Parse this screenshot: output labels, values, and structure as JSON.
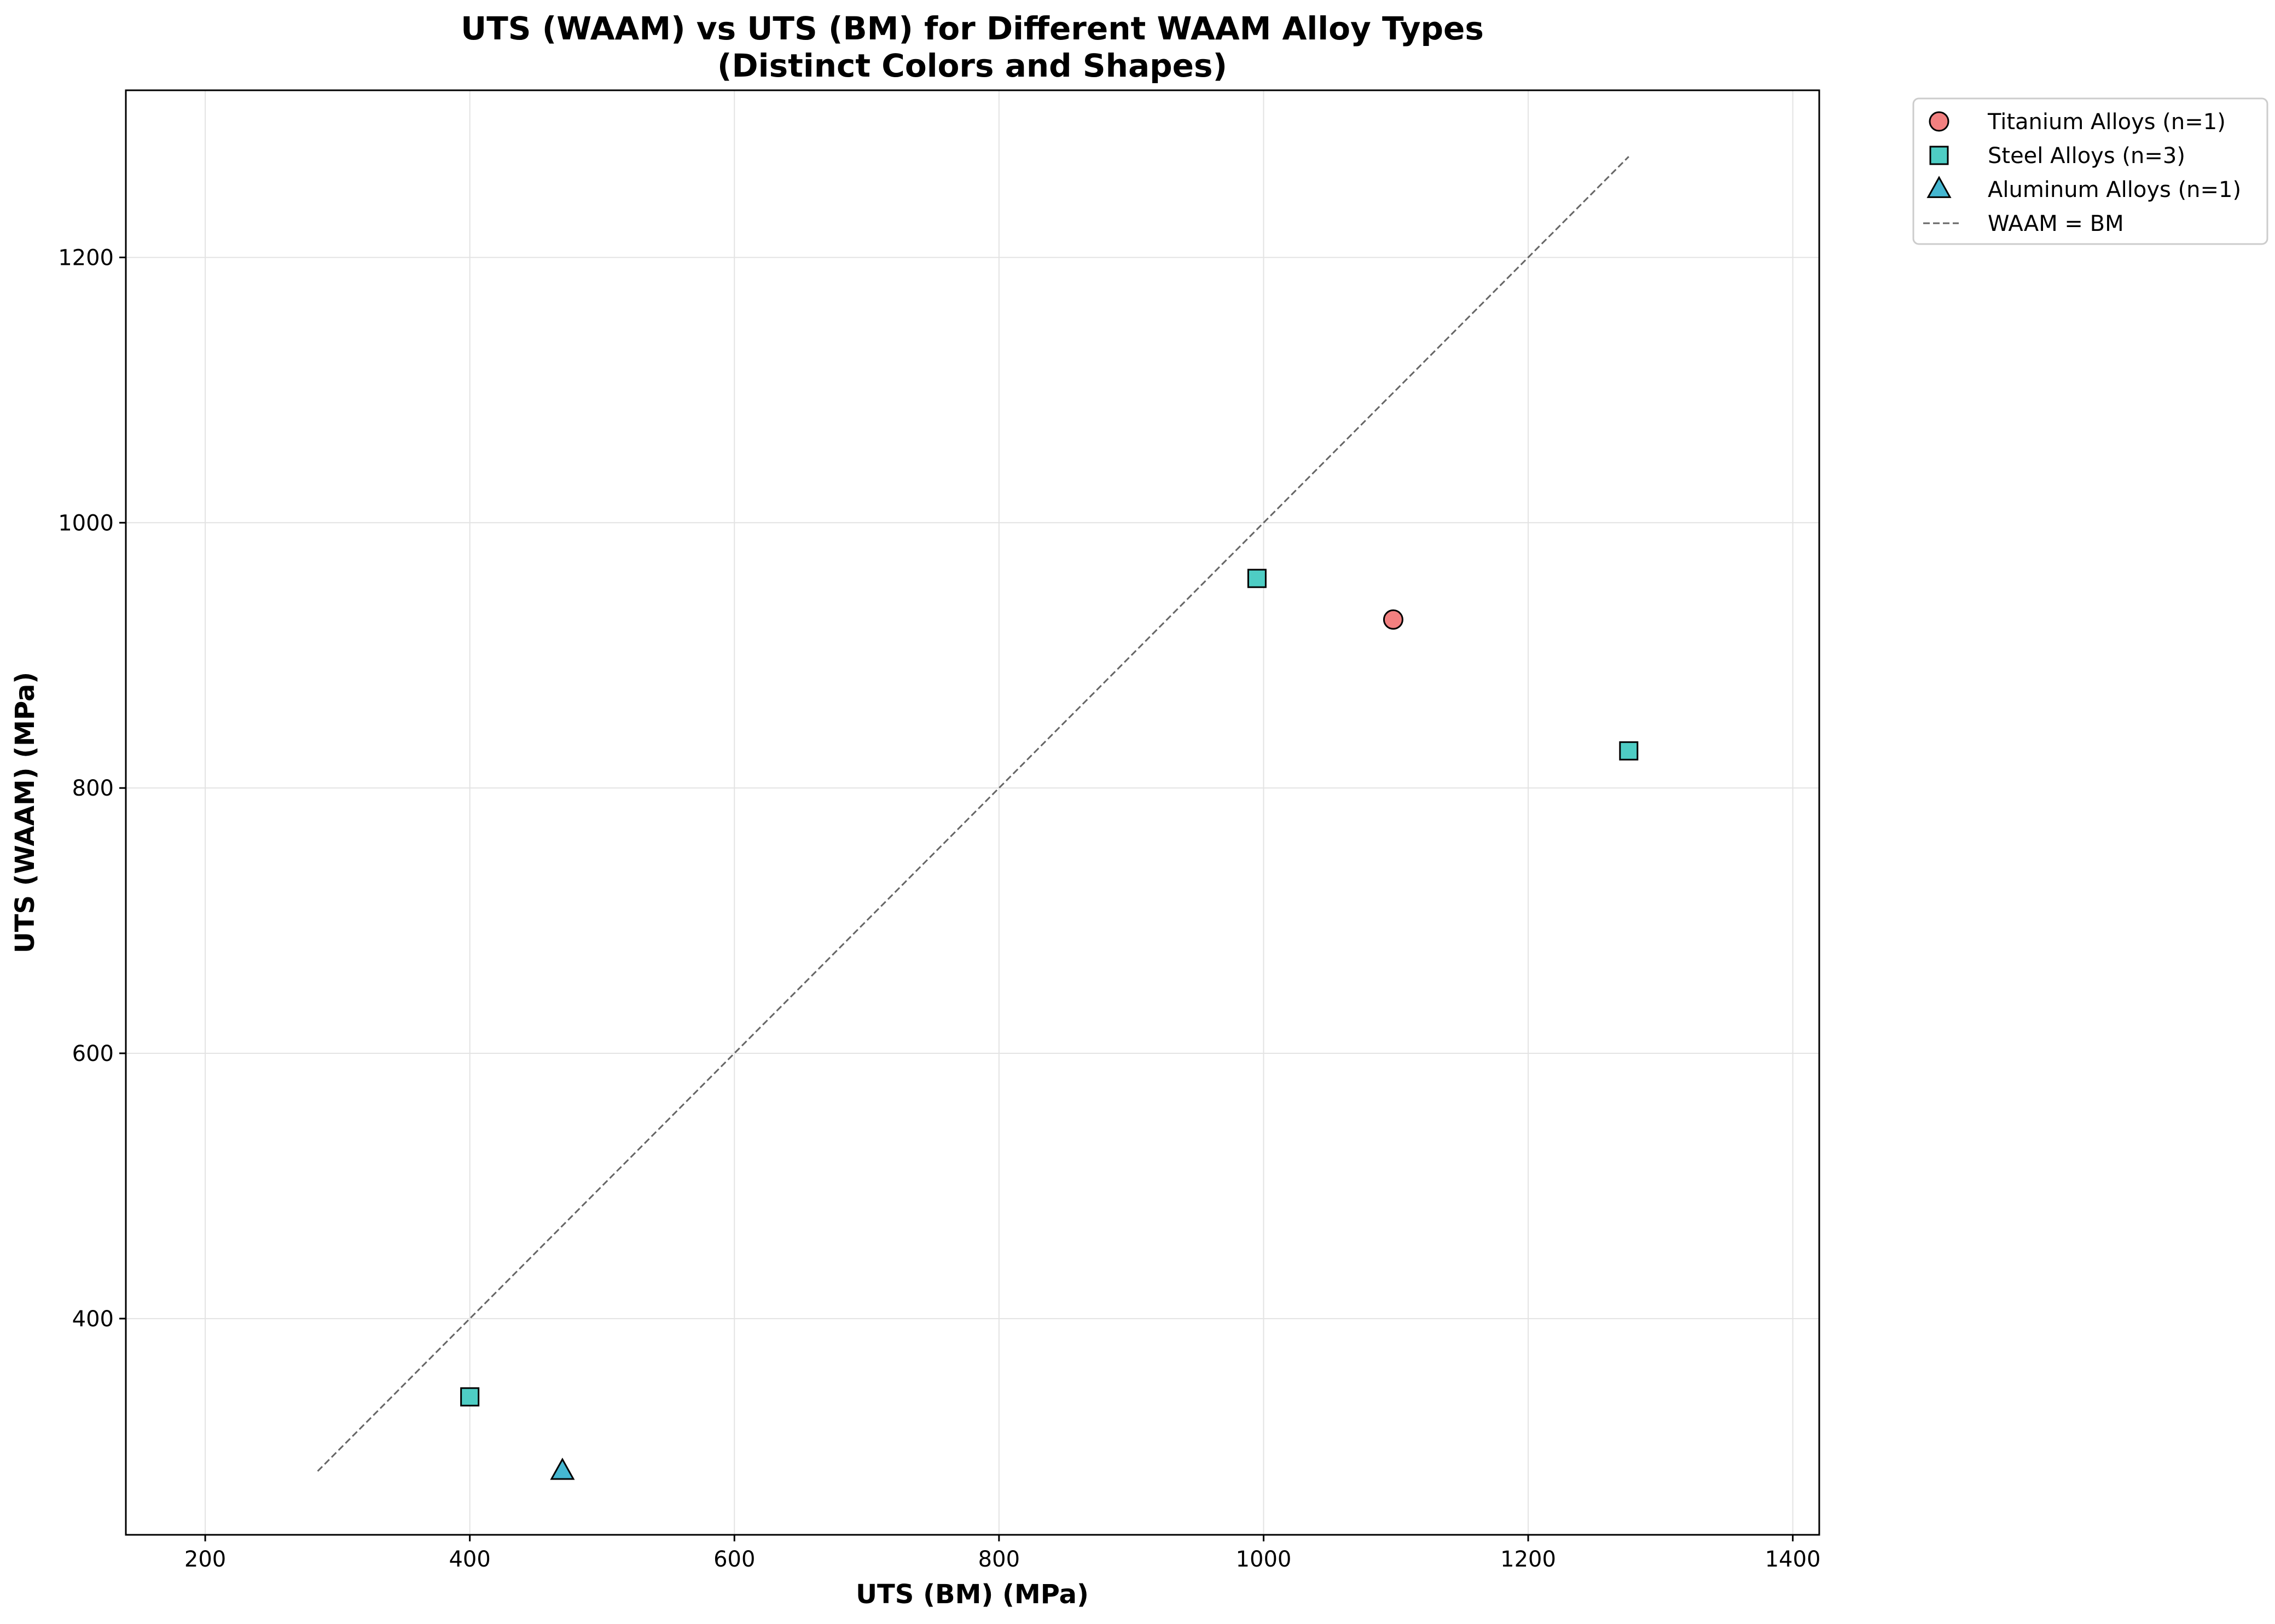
{
  "chart_data": {
    "type": "scatter",
    "title_line1": "UTS (WAAM) vs UTS (BM) for Different WAAM Alloy Types",
    "title_line2": "(Distinct Colors and Shapes)",
    "xlabel": "UTS (BM) (MPa)",
    "ylabel": "UTS (WAAM) (MPa)",
    "xlim": [
      140,
      1420
    ],
    "ylim": [
      237,
      1326
    ],
    "xticks": [
      200,
      400,
      600,
      800,
      1000,
      1200,
      1400
    ],
    "yticks": [
      400,
      600,
      800,
      1000,
      1200
    ],
    "grid": true,
    "legend_position": "outside top-right",
    "series": [
      {
        "name": "Titanium Alloys (n=1)",
        "marker": "circle",
        "color": "#f28080",
        "points": [
          {
            "x": 1098,
            "y": 927
          }
        ]
      },
      {
        "name": "Steel Alloys (n=3)",
        "marker": "square",
        "color": "#4ecdc4",
        "points": [
          {
            "x": 400,
            "y": 341
          },
          {
            "x": 995,
            "y": 958
          },
          {
            "x": 1276,
            "y": 828
          }
        ]
      },
      {
        "name": "Aluminum Alloys (n=1)",
        "marker": "triangle",
        "color": "#45b7d1",
        "points": [
          {
            "x": 470,
            "y": 285
          }
        ]
      }
    ],
    "reference_line": {
      "name": "WAAM = BM",
      "color": "#666666",
      "style": "dashed",
      "x": [
        285,
        1276
      ],
      "y": [
        285,
        1276
      ]
    }
  }
}
